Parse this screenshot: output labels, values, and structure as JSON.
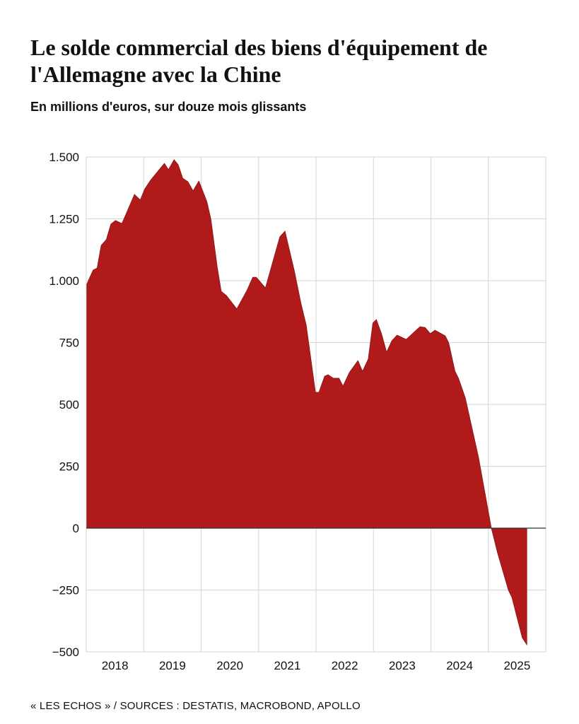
{
  "chart_data": {
    "type": "area",
    "title": "Le solde commercial des biens d'équipement de l'Allemagne avec la Chine",
    "subtitle": "En millions d'euros, sur douze mois glissants",
    "source": "« LES ECHOS » / SOURCES : DESTATIS, MACROBOND, APOLLO",
    "xlabel": "",
    "ylabel": "",
    "xlim": [
      2018,
      2026
    ],
    "ylim": [
      -500,
      1500
    ],
    "grid": true,
    "color": "#b01a1a",
    "y_ticks": [
      {
        "value": 1500,
        "label": "1.500"
      },
      {
        "value": 1250,
        "label": "1.250"
      },
      {
        "value": 1000,
        "label": "1.000"
      },
      {
        "value": 750,
        "label": "750"
      },
      {
        "value": 500,
        "label": "500"
      },
      {
        "value": 250,
        "label": "250"
      },
      {
        "value": 0,
        "label": "0"
      },
      {
        "value": -250,
        "label": "−250"
      },
      {
        "value": -500,
        "label": "−500"
      }
    ],
    "x_ticks": [
      "2018",
      "2019",
      "2020",
      "2021",
      "2022",
      "2023",
      "2024",
      "2025"
    ],
    "x": [
      2018.01,
      2018.12,
      2018.19,
      2018.26,
      2018.35,
      2018.43,
      2018.51,
      2018.62,
      2018.68,
      2018.84,
      2018.94,
      2019.02,
      2019.12,
      2019.36,
      2019.43,
      2019.53,
      2019.6,
      2019.68,
      2019.77,
      2019.86,
      2019.96,
      2020.1,
      2020.17,
      2020.28,
      2020.35,
      2020.44,
      2020.62,
      2020.79,
      2020.9,
      2020.96,
      2021.12,
      2021.37,
      2021.46,
      2021.62,
      2021.74,
      2021.83,
      2021.99,
      2022.05,
      2022.15,
      2022.21,
      2022.3,
      2022.4,
      2022.47,
      2022.58,
      2022.73,
      2022.81,
      2022.91,
      2022.99,
      2023.05,
      2023.14,
      2023.23,
      2023.32,
      2023.41,
      2023.57,
      2023.81,
      2023.9,
      2023.99,
      2024.07,
      2024.25,
      2024.31,
      2024.42,
      2024.48,
      2024.6,
      2024.83,
      2025.05,
      2025.16,
      2025.35,
      2025.41,
      2025.59,
      2025.67
    ],
    "values": [
      986,
      1043,
      1051,
      1143,
      1166,
      1229,
      1243,
      1231,
      1263,
      1349,
      1326,
      1371,
      1406,
      1474,
      1449,
      1489,
      1469,
      1414,
      1400,
      1363,
      1403,
      1320,
      1249,
      1057,
      957,
      940,
      886,
      957,
      1014,
      1014,
      971,
      1177,
      1200,
      1043,
      906,
      820,
      549,
      549,
      614,
      620,
      606,
      606,
      574,
      629,
      677,
      634,
      683,
      829,
      843,
      786,
      711,
      757,
      780,
      763,
      814,
      811,
      786,
      800,
      777,
      749,
      634,
      606,
      526,
      286,
      3,
      -100,
      -251,
      -280,
      -443,
      -471
    ]
  }
}
